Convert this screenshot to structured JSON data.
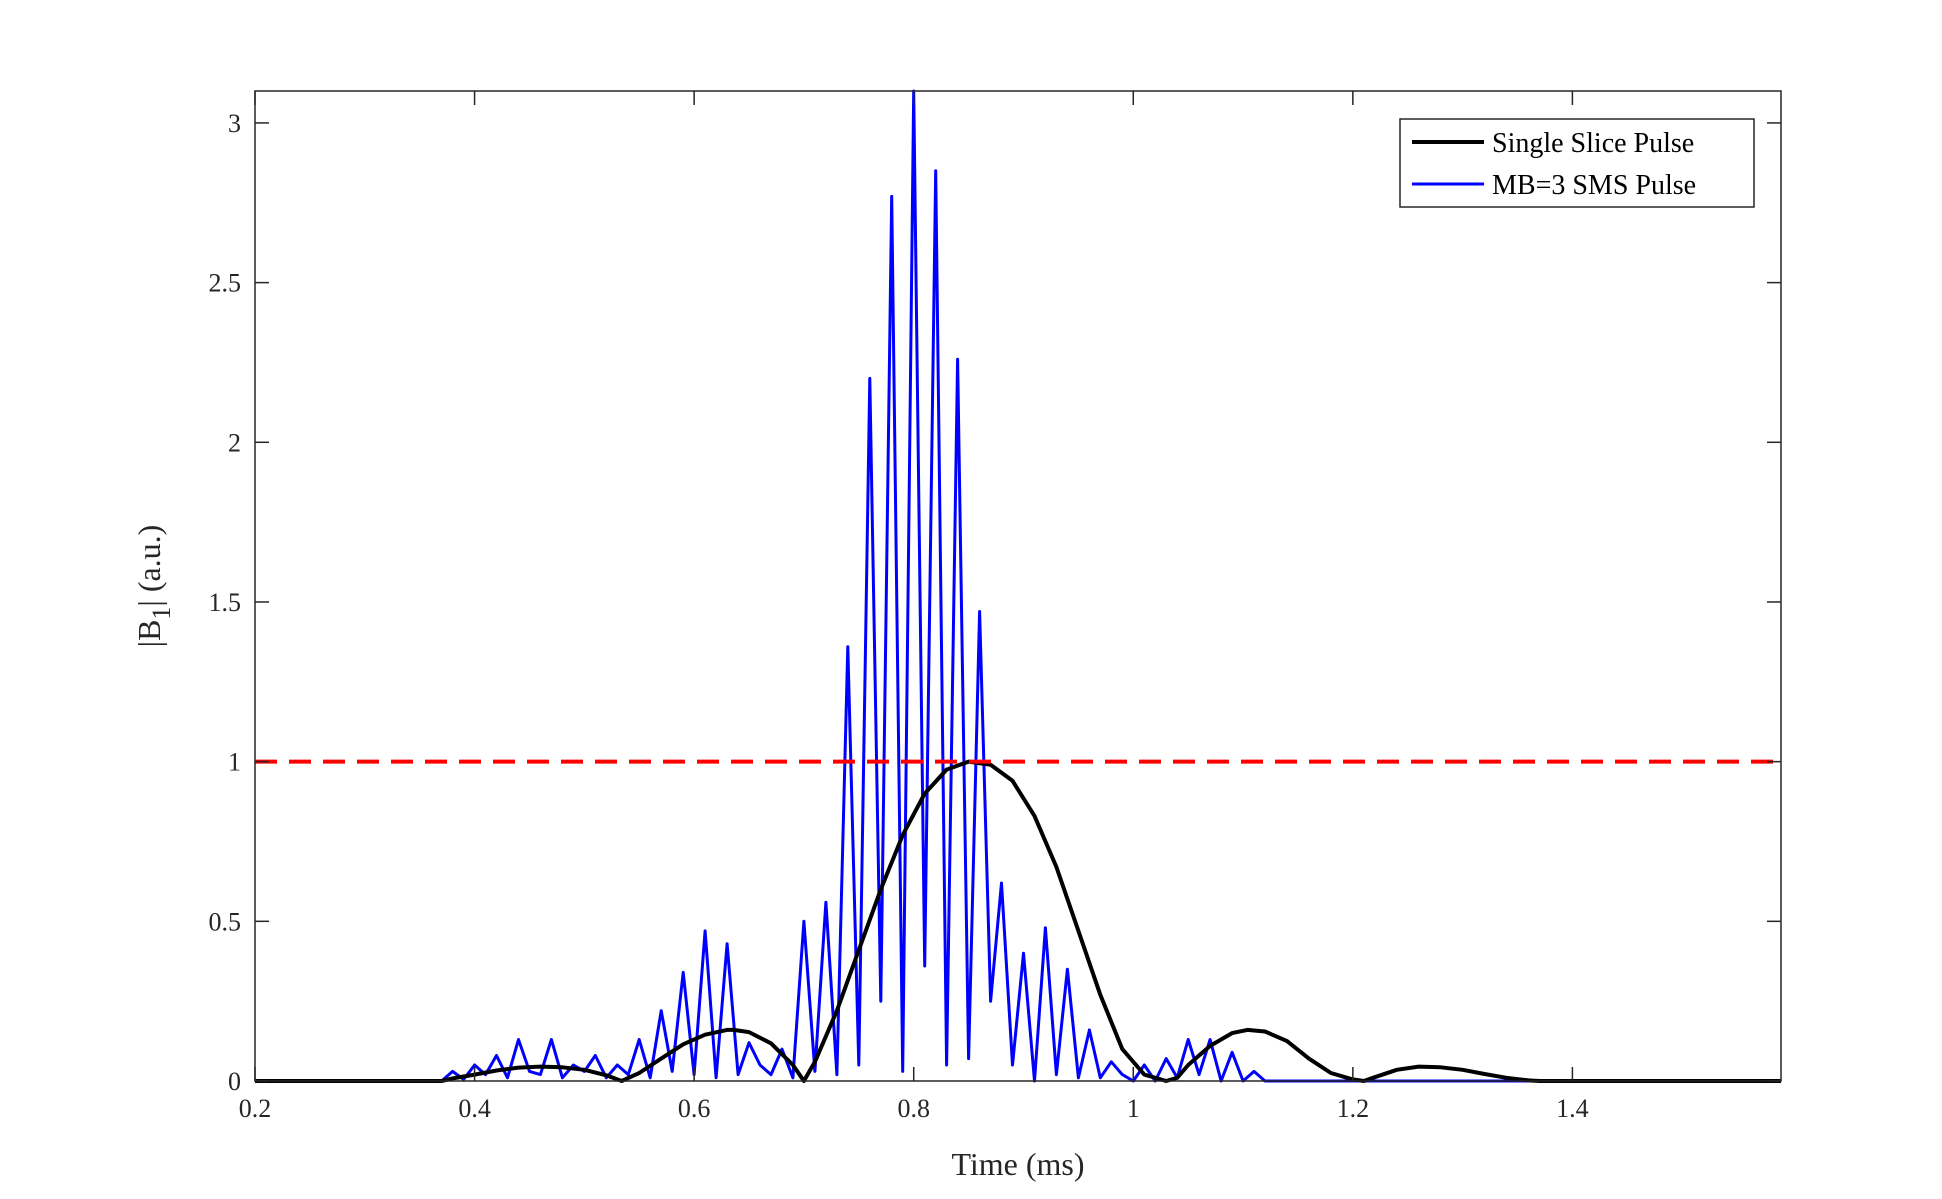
{
  "chart_data": {
    "type": "line",
    "title": "",
    "xlabel": "Time (ms)",
    "ylabel_main": "|B",
    "ylabel_sub": "1",
    "ylabel_rest": "| (a.u.)",
    "xlim": [
      0.2,
      1.59
    ],
    "ylim": [
      0,
      3.1
    ],
    "xticks": [
      0.2,
      0.4,
      0.6,
      0.8,
      1,
      1.2,
      1.4
    ],
    "xtick_labels": [
      "0.2",
      "0.4",
      "0.6",
      "0.8",
      "1",
      "1.2",
      "1.4"
    ],
    "yticks": [
      0,
      0.5,
      1,
      1.5,
      2,
      2.5,
      3
    ],
    "ytick_labels": [
      "0",
      "0.5",
      "1",
      "1.5",
      "2",
      "2.5",
      "3"
    ],
    "grid": false,
    "legend_position": "top-right",
    "reference_line": {
      "y": 1,
      "color": "#ff0000",
      "style": "dashed"
    },
    "series": [
      {
        "name": "Single Slice Pulse",
        "color": "#000000",
        "x": [
          0.2,
          0.37,
          0.38,
          0.4,
          0.42,
          0.44,
          0.46,
          0.48,
          0.5,
          0.52,
          0.534,
          0.55,
          0.57,
          0.59,
          0.61,
          0.63,
          0.636,
          0.65,
          0.67,
          0.69,
          0.7,
          0.71,
          0.73,
          0.75,
          0.77,
          0.79,
          0.81,
          0.83,
          0.85,
          0.87,
          0.89,
          0.91,
          0.93,
          0.95,
          0.97,
          0.99,
          1.01,
          1.03,
          1.04,
          1.05,
          1.07,
          1.09,
          1.104,
          1.12,
          1.14,
          1.16,
          1.18,
          1.2,
          1.21,
          1.22,
          1.24,
          1.26,
          1.28,
          1.3,
          1.32,
          1.34,
          1.36,
          1.37,
          1.59
        ],
        "values": [
          0,
          0,
          0.008,
          0.02,
          0.033,
          0.042,
          0.045,
          0.043,
          0.035,
          0.018,
          0,
          0.025,
          0.07,
          0.115,
          0.145,
          0.16,
          0.16,
          0.153,
          0.118,
          0.05,
          0,
          0.06,
          0.22,
          0.41,
          0.6,
          0.77,
          0.9,
          0.975,
          1.0,
          0.99,
          0.94,
          0.83,
          0.67,
          0.47,
          0.27,
          0.1,
          0.02,
          0,
          0.01,
          0.05,
          0.11,
          0.15,
          0.16,
          0.155,
          0.125,
          0.07,
          0.025,
          0.005,
          0,
          0.012,
          0.035,
          0.045,
          0.043,
          0.035,
          0.022,
          0.01,
          0.002,
          0,
          0
        ]
      },
      {
        "name": "MB=3 SMS Pulse",
        "color": "#0000ff",
        "x": [
          0.2,
          0.37,
          0.38,
          0.39,
          0.4,
          0.41,
          0.42,
          0.43,
          0.44,
          0.45,
          0.46,
          0.47,
          0.48,
          0.49,
          0.5,
          0.51,
          0.52,
          0.53,
          0.54,
          0.55,
          0.56,
          0.57,
          0.58,
          0.59,
          0.6,
          0.61,
          0.62,
          0.63,
          0.64,
          0.65,
          0.66,
          0.67,
          0.68,
          0.69,
          0.7,
          0.71,
          0.72,
          0.73,
          0.74,
          0.75,
          0.76,
          0.77,
          0.78,
          0.79,
          0.8,
          0.81,
          0.82,
          0.83,
          0.84,
          0.85,
          0.86,
          0.87,
          0.88,
          0.89,
          0.9,
          0.91,
          0.92,
          0.93,
          0.94,
          0.95,
          0.96,
          0.97,
          0.98,
          0.99,
          1.0,
          1.01,
          1.02,
          1.03,
          1.04,
          1.05,
          1.06,
          1.07,
          1.08,
          1.09,
          1.1,
          1.11,
          1.12,
          1.13,
          1.14,
          1.15,
          1.16,
          1.17,
          1.18,
          1.19,
          1.2,
          1.21,
          1.22,
          1.23,
          1.24,
          1.25,
          1.26,
          1.27,
          1.28,
          1.29,
          1.3,
          1.31,
          1.32,
          1.33,
          1.34,
          1.35,
          1.36,
          1.37,
          1.59
        ],
        "values": [
          0,
          0,
          0.03,
          0.005,
          0.05,
          0.02,
          0.08,
          0.01,
          0.13,
          0.03,
          0.02,
          0.13,
          0.01,
          0.05,
          0.03,
          0.08,
          0.01,
          0.05,
          0.02,
          0.13,
          0.01,
          0.22,
          0.03,
          0.34,
          0.02,
          0.47,
          0.01,
          0.43,
          0.02,
          0.12,
          0.05,
          0.02,
          0.1,
          0.01,
          0.5,
          0.03,
          0.56,
          0.02,
          1.36,
          0.05,
          2.2,
          0.25,
          2.77,
          0.03,
          3.1,
          0.36,
          2.85,
          0.05,
          2.26,
          0.07,
          1.47,
          0.25,
          0.62,
          0.05,
          0.4,
          0.0,
          0.48,
          0.02,
          0.35,
          0.01,
          0.16,
          0.01,
          0.06,
          0.02,
          0.0,
          0.05,
          0.0,
          0.07,
          0.01,
          0.13,
          0.02,
          0.13,
          0.0,
          0.09,
          0.0,
          0.03,
          0.0,
          0.0,
          0.0,
          0.0,
          0.0,
          0.0,
          0.0,
          0.0,
          0.0,
          0.0,
          0.0,
          0.0,
          0.0,
          0.0,
          0.0,
          0.0,
          0.0,
          0.0,
          0.0,
          0.0,
          0.0,
          0.0,
          0.0,
          0.0,
          0.0,
          0.0,
          0
        ]
      }
    ]
  }
}
